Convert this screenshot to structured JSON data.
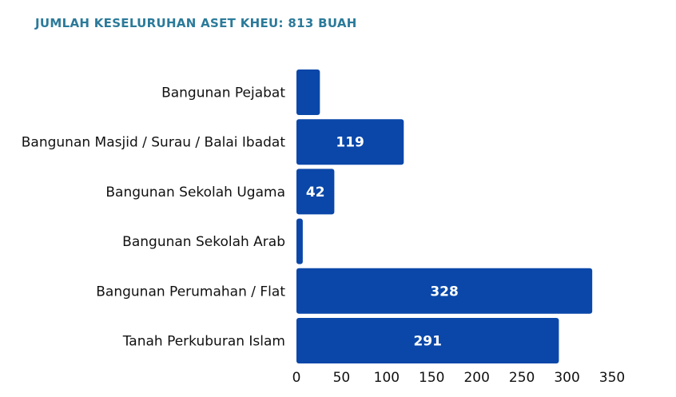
{
  "chart_data": {
    "type": "bar",
    "orientation": "horizontal",
    "title": "JUMLAH KESELURUHAN ASET KHEU: 813 BUAH",
    "categories": [
      "Bangunan Pejabat",
      "Bangunan Masjid / Surau / Balai Ibadat",
      "Bangunan Sekolah Ugama",
      "Bangunan Sekolah Arab",
      "Bangunan Perumahan / Flat",
      "Tanah Perkuburan Islam"
    ],
    "values": [
      26,
      119,
      42,
      7,
      328,
      291
    ],
    "data_labels": [
      "",
      "119",
      "42",
      "",
      "328",
      "291"
    ],
    "xlim": [
      0,
      350
    ],
    "xticks": [
      "0",
      "50",
      "100",
      "150",
      "200",
      "250",
      "300",
      "350"
    ],
    "grid": false,
    "bar_color": "#0a47a9"
  }
}
